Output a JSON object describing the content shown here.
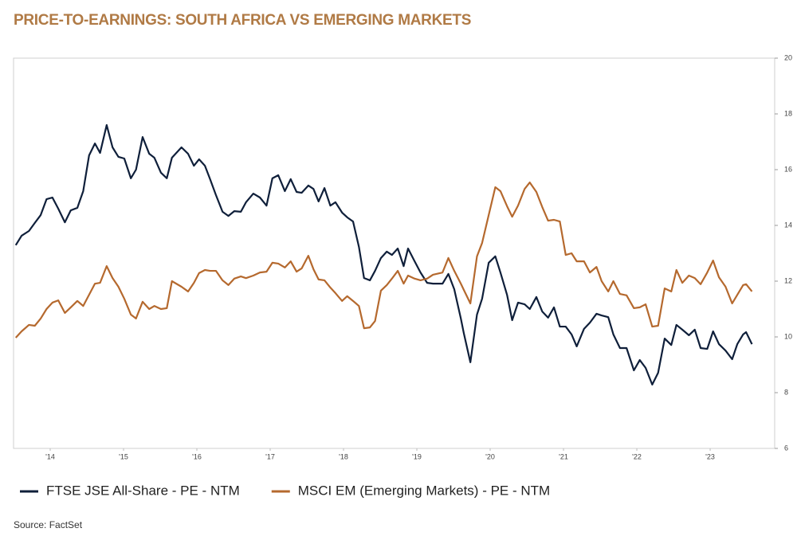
{
  "chart_data": {
    "type": "line",
    "title": "PRICE-TO-EARNINGS: SOUTH AFRICA VS EMERGING MARKETS",
    "title_color": "#b07a45",
    "source": "Source: FactSet",
    "x": [
      2013.53,
      2013.61,
      2013.71,
      2013.79,
      2013.87,
      2013.95,
      2014.03,
      2014.11,
      2014.2,
      2014.28,
      2014.37,
      2014.45,
      2014.53,
      2014.61,
      2014.68,
      2014.77,
      2014.85,
      2014.93,
      2015.01,
      2015.1,
      2015.17,
      2015.26,
      2015.35,
      2015.42,
      2015.51,
      2015.59,
      2015.66,
      2015.79,
      2015.88,
      2015.96,
      2016.03,
      2016.11,
      2016.18,
      2016.26,
      2016.35,
      2016.43,
      2016.51,
      2016.6,
      2016.67,
      2016.77,
      2016.86,
      2016.95,
      2017.03,
      2017.11,
      2017.2,
      2017.28,
      2017.36,
      2017.43,
      2017.52,
      2017.59,
      2017.66,
      2017.74,
      2017.82,
      2017.89,
      2017.98,
      2018.05,
      2018.13,
      2018.21,
      2018.28,
      2018.36,
      2018.43,
      2018.51,
      2018.59,
      2018.66,
      2018.74,
      2018.82,
      2018.88,
      2018.97,
      2019.05,
      2019.14,
      2019.22,
      2019.35,
      2019.43,
      2019.51,
      2019.6,
      2019.64,
      2019.73,
      2019.82,
      2019.89,
      2019.98,
      2020.07,
      2020.14,
      2020.23,
      2020.3,
      2020.38,
      2020.47,
      2020.54,
      2020.63,
      2020.71,
      2020.79,
      2020.87,
      2020.95,
      2021.03,
      2021.11,
      2021.18,
      2021.28,
      2021.36,
      2021.45,
      2021.52,
      2021.61,
      2021.68,
      2021.77,
      2021.86,
      2021.96,
      2022.04,
      2022.12,
      2022.21,
      2022.29,
      2022.38,
      2022.47,
      2022.54,
      2022.62,
      2022.71,
      2022.79,
      2022.87,
      2022.96,
      2023.04,
      2023.12,
      2023.21,
      2023.3,
      2023.37,
      2023.45,
      2023.49,
      2023.57
    ],
    "series": [
      {
        "name": "FTSE JSE All-Share - PE - NTM",
        "color": "#0f1f3a",
        "values": [
          13.29,
          13.63,
          13.8,
          14.09,
          14.37,
          14.94,
          15.0,
          14.6,
          14.11,
          14.54,
          14.63,
          15.23,
          16.51,
          16.94,
          16.6,
          17.6,
          16.8,
          16.46,
          16.4,
          15.69,
          16.0,
          17.17,
          16.57,
          16.43,
          15.89,
          15.69,
          16.43,
          16.8,
          16.57,
          16.14,
          16.37,
          16.14,
          15.66,
          15.09,
          14.49,
          14.34,
          14.51,
          14.49,
          14.83,
          15.14,
          15.0,
          14.71,
          15.69,
          15.8,
          15.23,
          15.66,
          15.2,
          15.17,
          15.43,
          15.31,
          14.86,
          15.34,
          14.71,
          14.83,
          14.46,
          14.29,
          14.14,
          13.23,
          12.11,
          12.03,
          12.37,
          12.83,
          13.06,
          12.94,
          13.17,
          12.54,
          13.17,
          12.71,
          12.31,
          11.94,
          11.91,
          11.91,
          12.26,
          11.71,
          10.66,
          10.14,
          9.09,
          10.8,
          11.37,
          12.66,
          12.89,
          12.31,
          11.51,
          10.6,
          11.23,
          11.17,
          11.0,
          11.43,
          10.91,
          10.69,
          11.06,
          10.37,
          10.37,
          10.09,
          9.66,
          10.29,
          10.51,
          10.83,
          10.77,
          10.71,
          10.09,
          9.6,
          9.6,
          8.8,
          9.17,
          8.89,
          8.29,
          8.71,
          9.94,
          9.71,
          10.43,
          10.26,
          10.06,
          10.26,
          9.6,
          9.57,
          10.2,
          9.74,
          9.51,
          9.2,
          9.74,
          10.09,
          10.17,
          9.74
        ]
      },
      {
        "name": "MSCI EM (Emerging Markets) - PE - NTM",
        "color": "#b5692e",
        "values": [
          9.97,
          10.2,
          10.43,
          10.4,
          10.66,
          11.0,
          11.23,
          11.31,
          10.86,
          11.06,
          11.29,
          11.11,
          11.51,
          11.91,
          11.94,
          12.54,
          12.11,
          11.8,
          11.37,
          10.8,
          10.66,
          11.26,
          11.0,
          11.11,
          11.0,
          11.03,
          12.0,
          11.8,
          11.63,
          11.94,
          12.29,
          12.4,
          12.37,
          12.37,
          12.03,
          11.86,
          12.09,
          12.17,
          12.11,
          12.2,
          12.31,
          12.34,
          12.66,
          12.63,
          12.49,
          12.71,
          12.34,
          12.46,
          12.91,
          12.43,
          12.06,
          12.03,
          11.77,
          11.57,
          11.29,
          11.46,
          11.29,
          11.11,
          10.31,
          10.34,
          10.57,
          11.66,
          11.86,
          12.09,
          12.37,
          11.91,
          12.2,
          12.09,
          12.03,
          12.09,
          12.23,
          12.31,
          12.83,
          12.37,
          11.91,
          11.69,
          11.2,
          12.89,
          13.37,
          14.37,
          15.37,
          15.23,
          14.69,
          14.31,
          14.71,
          15.31,
          15.54,
          15.2,
          14.66,
          14.17,
          14.2,
          14.14,
          12.94,
          13.0,
          12.71,
          12.71,
          12.31,
          12.51,
          12.0,
          11.63,
          12.0,
          11.54,
          11.49,
          11.03,
          11.06,
          11.17,
          10.37,
          10.4,
          11.74,
          11.63,
          12.4,
          11.94,
          12.2,
          12.11,
          11.89,
          12.31,
          12.74,
          12.14,
          11.8,
          11.2,
          11.51,
          11.86,
          11.89,
          11.63
        ]
      }
    ],
    "xlim": [
      2013.5,
      2023.88
    ],
    "xticks": [
      {
        "value": 2014,
        "label": "'14"
      },
      {
        "value": 2015,
        "label": "'15"
      },
      {
        "value": 2016,
        "label": "'16"
      },
      {
        "value": 2017,
        "label": "'17"
      },
      {
        "value": 2018,
        "label": "'18"
      },
      {
        "value": 2019,
        "label": "'19"
      },
      {
        "value": 2020,
        "label": "'20"
      },
      {
        "value": 2021,
        "label": "'21"
      },
      {
        "value": 2022,
        "label": "'22"
      },
      {
        "value": 2023,
        "label": "'23"
      }
    ],
    "ylim": [
      6,
      20
    ],
    "yticks": [
      6,
      8,
      10,
      12,
      14,
      16,
      18,
      20
    ],
    "grid": false
  }
}
